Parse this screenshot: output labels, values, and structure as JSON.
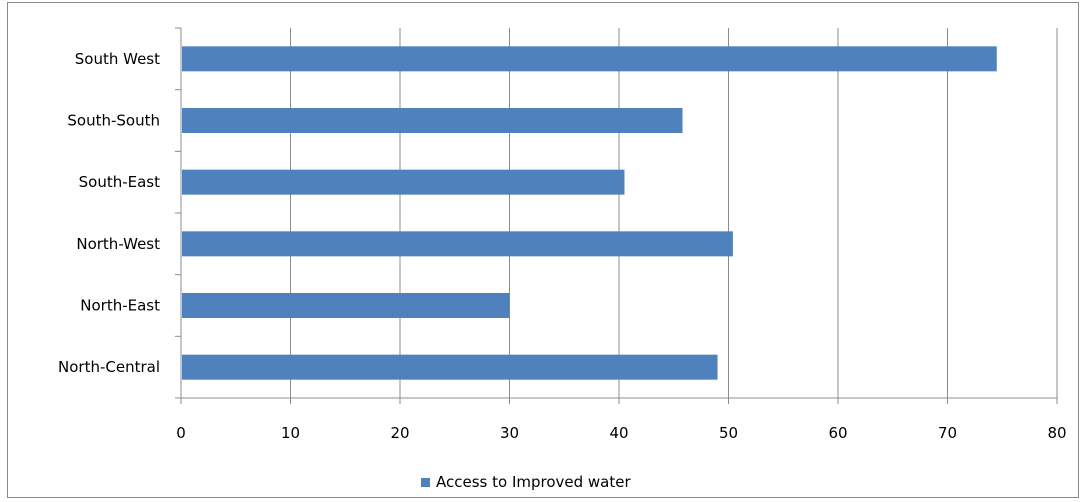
{
  "chart_data": {
    "type": "bar",
    "orientation": "horizontal",
    "categories": [
      "North-Central",
      "North-East",
      "North-West",
      "South-East",
      "South-South",
      "South West"
    ],
    "series": [
      {
        "name": "Access to Improved water",
        "values": [
          49,
          30,
          50.4,
          40.5,
          45.8,
          74.5
        ],
        "color": "#4f81bd"
      }
    ],
    "xlim": [
      0,
      80
    ],
    "xticks": [
      0,
      10,
      20,
      30,
      40,
      50,
      60,
      70,
      80
    ],
    "title": "",
    "xlabel": "",
    "ylabel": "",
    "grid": "vertical",
    "legend_position": "bottom"
  }
}
